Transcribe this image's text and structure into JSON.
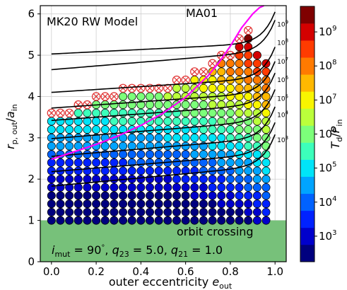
{
  "chart_data": {
    "type": "scatter",
    "title": "MK20 RW Model",
    "xlabel": "outer eccentricity",
    "xlabel_sub": "out",
    "ylabel": "r",
    "ylabel_sub": "p, out",
    "ylabel_den": "a",
    "ylabel_den_sub": "in",
    "xlim": [
      -0.05,
      1.05
    ],
    "ylim": [
      0,
      6.2
    ],
    "xticks": [
      "0.0",
      "0.2",
      "0.4",
      "0.6",
      "0.8",
      "1.0"
    ],
    "yticks": [
      "0",
      "1",
      "2",
      "3",
      "4",
      "5",
      "6"
    ],
    "grid": true,
    "colorbar": {
      "label": "T",
      "label_sub": "d",
      "label_den": "P",
      "label_den_sub": "in",
      "scale": "log",
      "ticks": [
        "10",
        "10",
        "10",
        "10",
        "10",
        "10",
        "10"
      ],
      "tick_exps": [
        "3",
        "4",
        "5",
        "6",
        "7",
        "8",
        "9"
      ],
      "levels": [
        2.5,
        3.0,
        3.5,
        4.0,
        4.5,
        5.0,
        5.5,
        6.0,
        6.5,
        7.0,
        7.5,
        8.0,
        8.5,
        9.0,
        9.5
      ],
      "colors": [
        "#00007f",
        "#0000cc",
        "#0022ff",
        "#0062ff",
        "#00a4ff",
        "#00e4f8",
        "#3cffbb",
        "#7cff7a",
        "#bbff3b",
        "#f8f500",
        "#ffb800",
        "#ff7a00",
        "#ff3b00",
        "#d40000",
        "#7f0000"
      ]
    },
    "orbit_crossing": {
      "label": "orbit crossing",
      "ymin": 0,
      "ymax": 1,
      "color": "#77c17a"
    },
    "params_text": {
      "i_label": "i",
      "i_sub": "mut",
      "i_value": " = 90",
      "deg": "°",
      "q23_label": "q",
      "q23_sub": "23",
      "q23_value": " = 5.0",
      "q21_label": "q",
      "q21_sub": "21",
      "q21_value": " = 1.0",
      "sep": ", "
    },
    "ma01": {
      "name": "MA01",
      "color": "#ff00ff",
      "x": [
        0.0,
        0.1,
        0.2,
        0.3,
        0.4,
        0.5,
        0.6,
        0.7,
        0.75,
        0.8,
        0.85,
        0.9,
        0.93,
        0.95
      ],
      "y": [
        2.48,
        2.66,
        2.84,
        3.05,
        3.3,
        3.6,
        3.98,
        4.5,
        4.83,
        5.22,
        5.66,
        6.0,
        6.15,
        6.2
      ]
    },
    "contours": [
      {
        "label": "10",
        "exp": "3",
        "y0": 1.83,
        "y1": 2.33,
        "ymid_label": 2.95
      },
      {
        "label": "10",
        "exp": "4",
        "y0": 2.18,
        "y1": 2.62,
        "ymid_label": 3.55
      },
      {
        "label": "10",
        "exp": "5",
        "y0": 2.55,
        "y1": 3.0,
        "ymid_label": 3.95
      },
      {
        "label": "10",
        "exp": "6",
        "y0": 2.98,
        "y1": 3.42,
        "ymid_label": 4.4
      },
      {
        "label": "10",
        "exp": "7",
        "y0": 3.42,
        "y1": 3.82,
        "ymid_label": 4.85
      },
      {
        "label": "10",
        "exp": "8",
        "y0": 3.72,
        "y1": 4.1,
        "ymid_label": 5.3
      },
      {
        "label": "10",
        "exp": "9",
        "y0": 4.1,
        "y1": 4.45,
        "ymid_label": 5.75
      },
      {
        "label": "",
        "exp": "",
        "y0": 4.65,
        "y1": 5.1,
        "ymid_label": 0
      },
      {
        "label": "",
        "exp": "",
        "y0": 5.03,
        "y1": 5.3,
        "ymid_label": 0
      }
    ],
    "grid_points": {
      "x": [
        0.0,
        0.04,
        0.08,
        0.12,
        0.16,
        0.2,
        0.24,
        0.28,
        0.32,
        0.36,
        0.4,
        0.44,
        0.48,
        0.52,
        0.56,
        0.6,
        0.64,
        0.68,
        0.72,
        0.76,
        0.8,
        0.84,
        0.88,
        0.92,
        0.96
      ],
      "y_start": 1.0,
      "y_step": 0.2,
      "top_y": [
        3.6,
        3.6,
        3.6,
        3.8,
        3.8,
        4.0,
        4.0,
        4.0,
        4.2,
        4.2,
        4.2,
        4.2,
        4.2,
        4.2,
        4.4,
        4.4,
        4.6,
        4.6,
        4.8,
        5.0,
        5.0,
        5.4,
        5.6,
        5.0,
        4.8
      ],
      "unstable_marks": 1
    }
  }
}
